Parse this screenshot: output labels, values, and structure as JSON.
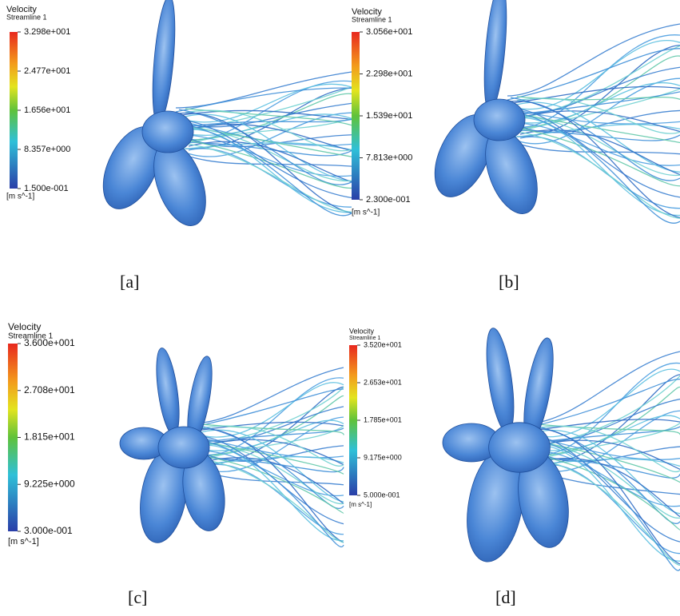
{
  "panels": [
    {
      "legend": {
        "title": "Velocity",
        "subtitle": "Streamline 1",
        "ticks": [
          "3.298e+001",
          "2.477e+001",
          "1.656e+001",
          "8.357e+000",
          "1.500e-001"
        ],
        "unit": "[m s^-1]"
      },
      "caption": "[a]"
    },
    {
      "legend": {
        "title": "Velocity",
        "subtitle": "Streamline 1",
        "ticks": [
          "3.056e+001",
          "2.298e+001",
          "1.539e+001",
          "7.813e+000",
          "2.300e-001"
        ],
        "unit": "[m s^-1]"
      },
      "caption": "[b]"
    },
    {
      "legend": {
        "title": "Velocity",
        "subtitle": "Streamline 1",
        "ticks": [
          "3.600e+001",
          "2.708e+001",
          "1.815e+001",
          "9.225e+000",
          "3.000e-001"
        ],
        "unit": "[m s^-1]"
      },
      "caption": "[c]"
    },
    {
      "legend": {
        "title": "Velocity",
        "subtitle": "Streamline 1",
        "ticks": [
          "3.520e+001",
          "2.653e+001",
          "1.785e+001",
          "9.175e+000",
          "5.000e-001"
        ],
        "unit": "[m s^-1]"
      },
      "caption": "[d]"
    }
  ]
}
